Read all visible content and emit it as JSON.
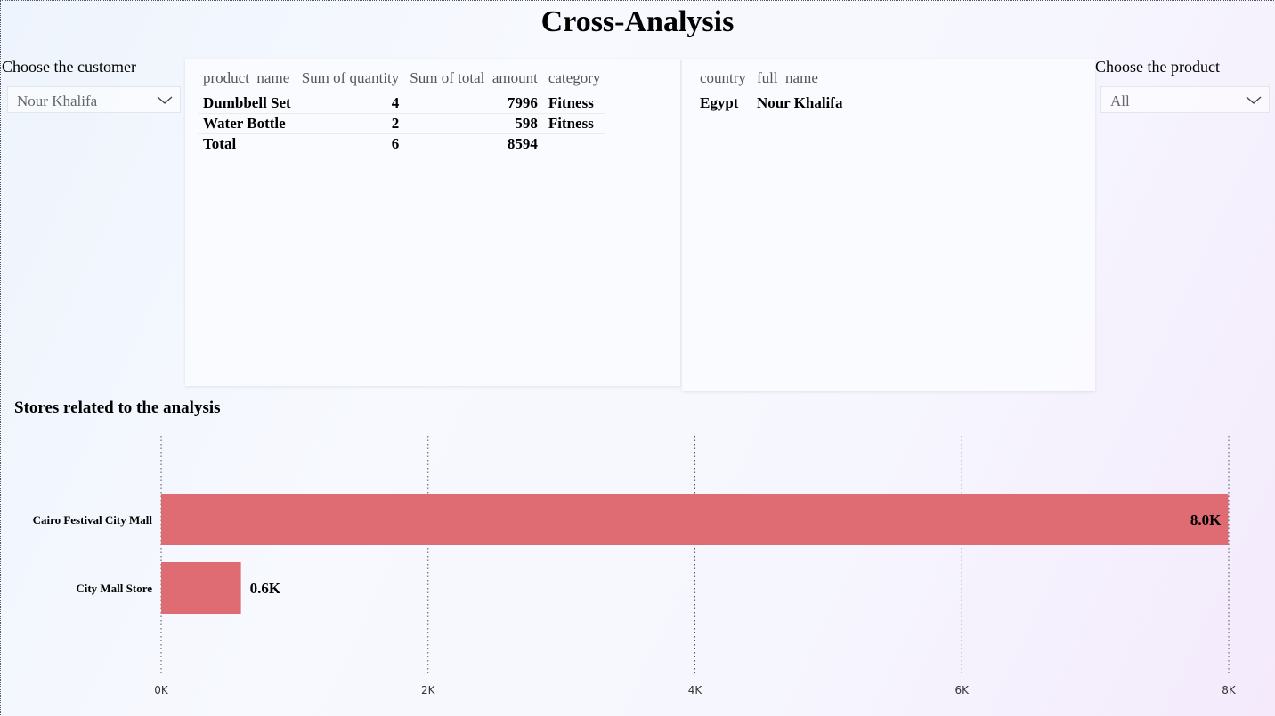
{
  "page": {
    "title": "Cross-Analysis"
  },
  "customer_slicer": {
    "label": "Choose the customer",
    "selected": "Nour Khalifa"
  },
  "product_slicer": {
    "label": "Choose the product",
    "selected": "All"
  },
  "product_table": {
    "columns": [
      "product_name",
      "Sum of quantity",
      "Sum of total_amount",
      "category"
    ],
    "rows": [
      {
        "product_name": "Dumbbell Set",
        "quantity": "4",
        "total_amount": "7996",
        "category": "Fitness"
      },
      {
        "product_name": "Water Bottle",
        "quantity": "2",
        "total_amount": "598",
        "category": "Fitness"
      }
    ],
    "total": {
      "label": "Total",
      "quantity": "6",
      "total_amount": "8594"
    }
  },
  "customer_table": {
    "columns": [
      "country",
      "full_name"
    ],
    "rows": [
      {
        "country": "Egypt",
        "full_name": "Nour Khalifa"
      }
    ]
  },
  "chart_data": {
    "type": "bar",
    "orientation": "horizontal",
    "title": "Stores related to the analysis",
    "categories": [
      "Cairo Festival City Mall",
      "City Mall Store"
    ],
    "values": [
      7996,
      598
    ],
    "data_labels": [
      "8.0K",
      "0.6K"
    ],
    "xlim": [
      0,
      8000
    ],
    "ticks": [
      0,
      2000,
      4000,
      6000,
      8000
    ],
    "tick_labels": [
      "0K",
      "2K",
      "4K",
      "6K",
      "8K"
    ],
    "grid": true,
    "bar_color": "#df6b73"
  }
}
